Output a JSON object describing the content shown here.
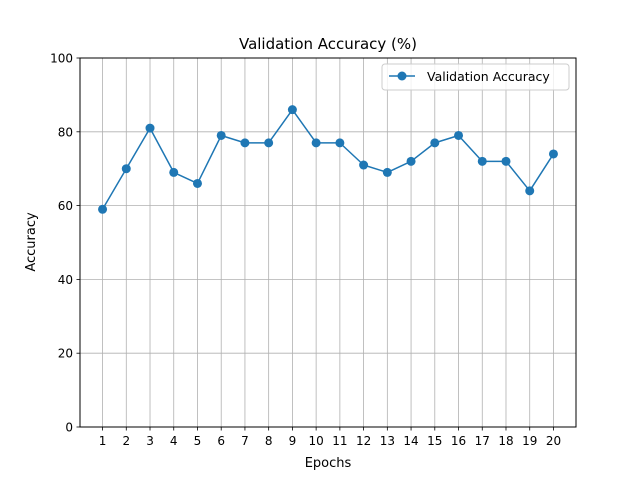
{
  "chart_data": {
    "type": "line",
    "title": "Validation Accuracy (%)",
    "xlabel": "Epochs",
    "ylabel": "Accuracy",
    "x": [
      1,
      2,
      3,
      4,
      5,
      6,
      7,
      8,
      9,
      10,
      11,
      12,
      13,
      14,
      15,
      16,
      17,
      18,
      19,
      20
    ],
    "series": [
      {
        "name": "Validation Accuracy",
        "values": [
          59,
          70,
          81,
          69,
          66,
          79,
          77,
          77,
          86,
          77,
          77,
          71,
          69,
          72,
          77,
          79,
          72,
          72,
          64,
          74
        ],
        "color": "#1f77b4"
      }
    ],
    "xlim": [
      0.05,
      20.95
    ],
    "ylim": [
      0,
      100
    ],
    "yticks": [
      0,
      20,
      40,
      60,
      80,
      100
    ],
    "grid": true,
    "legend_position": "top-right"
  }
}
